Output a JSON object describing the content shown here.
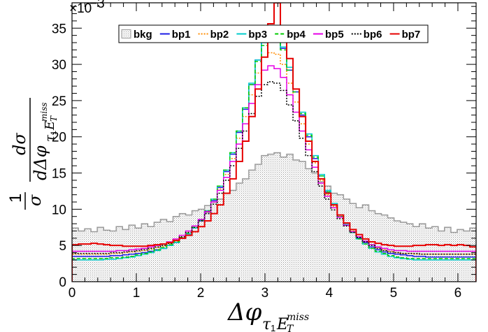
{
  "chart_data": {
    "type": "histogram",
    "xlabel_main": "Δφ",
    "xlabel_sub": "τ",
    "xlabel_sub_index": "1",
    "xlabel_sub_E": "E",
    "xlabel_sub_T": "T",
    "xlabel_sub_miss": "miss",
    "ylabel_prefix": "1",
    "ylabel_sigma": "σ",
    "ylabel_num": "dσ",
    "ylabel_den": "dΔφ",
    "ylabel_sub": "τ",
    "ylabel_sub_index": "1",
    "ylabel_sub_E": "E",
    "ylabel_sub_T": "T",
    "ylabel_sub_miss": "miss",
    "y_multiplier_base": "×10",
    "y_multiplier_exp": "−3",
    "xlim": [
      0,
      6.2832
    ],
    "ylim": [
      0,
      38.5
    ],
    "bins": 64,
    "x_ticks": [
      0,
      1,
      2,
      3,
      4,
      5,
      6
    ],
    "x_tick_labels": [
      "0",
      "1",
      "2",
      "3",
      "4",
      "5",
      "6"
    ],
    "y_ticks": [
      0,
      5,
      10,
      15,
      20,
      25,
      30,
      35
    ],
    "y_tick_labels": [
      "0",
      "5",
      "10",
      "15",
      "20",
      "25",
      "30",
      "35"
    ],
    "series": [
      {
        "name": "bkg",
        "color": "#999999",
        "style": "filled",
        "values": [
          7.4,
          7.0,
          7.3,
          6.9,
          7.5,
          7.1,
          7.0,
          7.6,
          7.2,
          7.8,
          7.4,
          8.0,
          7.6,
          8.2,
          8.6,
          8.3,
          9.0,
          9.4,
          9.2,
          9.8,
          10.0,
          10.5,
          11.0,
          11.4,
          12.2,
          12.6,
          13.6,
          14.2,
          15.4,
          16.2,
          17.4,
          17.6,
          17.8,
          17.2,
          17.6,
          16.8,
          16.6,
          15.6,
          15.0,
          13.8,
          13.2,
          12.2,
          12.0,
          11.4,
          10.8,
          10.2,
          10.6,
          9.8,
          9.4,
          9.2,
          8.8,
          8.4,
          8.2,
          8.0,
          7.6,
          8.0,
          7.4,
          7.6,
          7.0,
          7.5,
          6.8,
          7.2,
          7.0,
          7.4
        ]
      },
      {
        "name": "bp1",
        "color": "#1e1ee6",
        "style": "solid",
        "values": [
          3.5,
          3.5,
          3.5,
          3.5,
          3.5,
          3.5,
          3.6,
          3.6,
          3.7,
          3.8,
          3.9,
          4.0,
          4.2,
          4.4,
          4.6,
          5.0,
          5.4,
          6.0,
          6.6,
          7.4,
          8.4,
          9.6,
          11.2,
          13.0,
          15.2,
          17.6,
          20.6,
          23.8,
          27.2,
          30.6,
          33.2,
          34.0,
          34.0,
          32.2,
          29.2,
          26.2,
          23.0,
          20.0,
          17.0,
          14.6,
          12.4,
          10.6,
          9.0,
          7.8,
          6.8,
          6.0,
          5.4,
          4.8,
          4.4,
          4.1,
          3.9,
          3.8,
          3.7,
          3.6,
          3.5,
          3.5,
          3.4,
          3.4,
          3.4,
          3.4,
          3.4,
          3.4,
          3.4,
          3.4
        ]
      },
      {
        "name": "bp2",
        "color": "#ff8c00",
        "style": "dotted",
        "values": [
          3.8,
          3.8,
          3.8,
          3.8,
          3.8,
          3.8,
          3.9,
          3.9,
          4.0,
          4.1,
          4.2,
          4.3,
          4.5,
          4.7,
          4.9,
          5.2,
          5.6,
          6.2,
          6.8,
          7.5,
          8.4,
          9.6,
          11.0,
          12.8,
          14.8,
          17.0,
          19.8,
          22.8,
          25.8,
          28.8,
          31.0,
          31.6,
          31.4,
          30.0,
          27.4,
          24.8,
          21.8,
          19.0,
          16.4,
          14.0,
          12.0,
          10.4,
          9.0,
          7.9,
          7.0,
          6.2,
          5.6,
          5.1,
          4.7,
          4.4,
          4.2,
          4.0,
          3.9,
          3.9,
          3.8,
          3.8,
          3.8,
          3.8,
          3.8,
          3.8,
          3.8,
          3.8,
          3.8,
          3.8
        ]
      },
      {
        "name": "bp3",
        "color": "#00cccc",
        "style": "solid",
        "values": [
          3.0,
          3.0,
          3.0,
          3.0,
          3.0,
          3.1,
          3.1,
          3.2,
          3.3,
          3.4,
          3.6,
          3.8,
          4.0,
          4.3,
          4.6,
          5.0,
          5.4,
          6.0,
          6.6,
          7.4,
          8.5,
          9.8,
          11.4,
          13.2,
          15.4,
          17.8,
          20.8,
          24.0,
          27.4,
          30.6,
          33.0,
          33.6,
          33.8,
          32.4,
          29.6,
          26.6,
          23.4,
          20.4,
          17.4,
          14.8,
          12.6,
          10.8,
          9.2,
          7.9,
          6.8,
          5.9,
          5.2,
          4.6,
          4.1,
          3.8,
          3.5,
          3.3,
          3.2,
          3.1,
          3.0,
          3.0,
          3.0,
          3.0,
          3.0,
          3.0,
          3.0,
          3.0,
          3.0,
          3.0
        ]
      },
      {
        "name": "bp4",
        "color": "#00cc00",
        "style": "dashed",
        "values": [
          3.2,
          3.2,
          3.2,
          3.2,
          3.2,
          3.2,
          3.3,
          3.3,
          3.4,
          3.5,
          3.7,
          3.9,
          4.1,
          4.4,
          4.7,
          5.1,
          5.5,
          6.1,
          6.7,
          7.5,
          8.5,
          9.8,
          11.4,
          13.2,
          15.4,
          17.8,
          20.8,
          24.0,
          27.2,
          30.4,
          32.6,
          33.2,
          33.4,
          32.0,
          29.2,
          26.2,
          23.2,
          20.2,
          17.2,
          14.6,
          12.4,
          10.6,
          9.0,
          7.8,
          6.8,
          5.9,
          5.2,
          4.6,
          4.2,
          3.9,
          3.6,
          3.4,
          3.3,
          3.2,
          3.2,
          3.2,
          3.2,
          3.2,
          3.2,
          3.2,
          3.2,
          3.2,
          3.2,
          3.2
        ]
      },
      {
        "name": "bp5",
        "color": "#e600e6",
        "style": "solid",
        "values": [
          4.2,
          4.2,
          4.2,
          4.2,
          4.2,
          4.2,
          4.2,
          4.3,
          4.3,
          4.4,
          4.5,
          4.6,
          4.8,
          5.0,
          5.2,
          5.5,
          5.9,
          6.4,
          7.0,
          7.7,
          8.6,
          9.7,
          11.0,
          12.6,
          14.4,
          16.6,
          19.0,
          21.8,
          24.6,
          27.2,
          29.2,
          29.8,
          29.4,
          28.2,
          25.8,
          23.4,
          20.8,
          18.2,
          15.8,
          13.6,
          11.8,
          10.2,
          8.9,
          7.8,
          6.9,
          6.2,
          5.6,
          5.1,
          4.8,
          4.6,
          4.4,
          4.3,
          4.3,
          4.2,
          4.2,
          4.2,
          4.2,
          4.2,
          4.2,
          4.2,
          4.2,
          4.2,
          4.2,
          4.2
        ]
      },
      {
        "name": "bp6",
        "color": "#000000",
        "style": "dotted",
        "values": [
          3.9,
          3.9,
          3.9,
          3.9,
          3.9,
          3.9,
          4.0,
          4.0,
          4.1,
          4.2,
          4.3,
          4.4,
          4.6,
          4.8,
          5.0,
          5.3,
          5.7,
          6.2,
          6.8,
          7.5,
          8.4,
          9.4,
          10.7,
          12.2,
          14.0,
          16.0,
          18.4,
          20.8,
          23.2,
          25.6,
          27.2,
          27.6,
          27.4,
          26.4,
          24.4,
          22.2,
          19.8,
          17.4,
          15.2,
          13.2,
          11.4,
          9.9,
          8.7,
          7.7,
          6.8,
          6.1,
          5.5,
          5.0,
          4.6,
          4.3,
          4.1,
          4.0,
          3.9,
          3.9,
          3.9,
          3.8,
          3.8,
          3.8,
          3.8,
          3.8,
          3.8,
          3.8,
          3.8,
          3.8
        ]
      },
      {
        "name": "bp7",
        "color": "#e60000",
        "style": "solid",
        "values": [
          5.1,
          5.2,
          5.2,
          5.3,
          5.2,
          5.1,
          5.0,
          5.0,
          4.9,
          4.9,
          4.9,
          4.9,
          5.0,
          5.1,
          5.2,
          5.4,
          5.7,
          6.0,
          6.4,
          6.9,
          7.6,
          8.4,
          9.4,
          10.6,
          12.2,
          14.2,
          16.6,
          19.4,
          22.8,
          26.6,
          31.0,
          35.6,
          38.5,
          34.2,
          30.8,
          26.6,
          22.8,
          19.4,
          16.6,
          14.2,
          12.2,
          10.6,
          9.2,
          8.1,
          7.2,
          6.5,
          5.9,
          5.5,
          5.3,
          5.1,
          5.0,
          4.9,
          4.9,
          4.9,
          5.0,
          5.0,
          5.1,
          5.1,
          5.0,
          5.1,
          5.0,
          5.1,
          5.0,
          4.8
        ]
      }
    ]
  }
}
